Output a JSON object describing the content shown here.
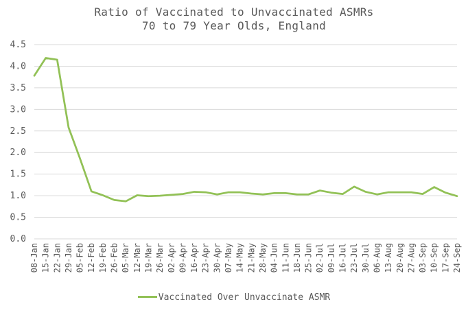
{
  "chart_data": {
    "type": "line",
    "title_lines": [
      "Ratio of Vaccinated to Unvaccinated ASMRs",
      "70 to 79 Year Olds, England"
    ],
    "xlabel": "",
    "ylabel": "",
    "ylim": [
      0,
      4.5
    ],
    "yticks": [
      "0.0",
      "0.5",
      "1.0",
      "1.5",
      "2.0",
      "2.5",
      "3.0",
      "3.5",
      "4.0",
      "4.5"
    ],
    "grid": true,
    "legend_position": "bottom",
    "categories": [
      "08-Jan",
      "15-Jan",
      "22-Jan",
      "29-Jan",
      "05-Feb",
      "12-Feb",
      "19-Feb",
      "26-Feb",
      "05-Mar",
      "12-Mar",
      "19-Mar",
      "26-Mar",
      "02-Apr",
      "09-Apr",
      "16-Apr",
      "23-Apr",
      "30-Apr",
      "07-May",
      "14-May",
      "21-May",
      "28-May",
      "04-Jun",
      "11-Jun",
      "18-Jun",
      "25-Jun",
      "02-Jul",
      "09-Jul",
      "16-Jul",
      "23-Jul",
      "30-Jul",
      "06-Aug",
      "13-Aug",
      "20-Aug",
      "27-Aug",
      "03-Sep",
      "10-Sep",
      "17-Sep",
      "24-Sep"
    ],
    "series": [
      {
        "name": "Vaccinated Over Unvaccinate ASMR",
        "color": "#92c156",
        "values": [
          3.78,
          4.19,
          4.15,
          2.58,
          1.86,
          1.1,
          1.01,
          0.9,
          0.87,
          1.01,
          0.99,
          1.0,
          1.02,
          1.04,
          1.09,
          1.08,
          1.03,
          1.08,
          1.08,
          1.05,
          1.03,
          1.06,
          1.06,
          1.03,
          1.03,
          1.12,
          1.07,
          1.04,
          1.21,
          1.09,
          1.03,
          1.08,
          1.08,
          1.08,
          1.04,
          1.2,
          1.07,
          0.99
        ]
      }
    ]
  },
  "colors": {
    "gridline": "#d9d9d9",
    "text": "#595959"
  }
}
